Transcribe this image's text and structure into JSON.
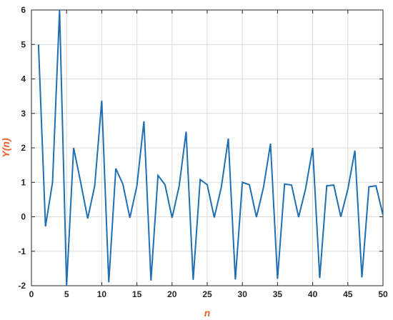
{
  "chart_data": {
    "type": "line",
    "xlabel": "n",
    "ylabel": "Y(n)",
    "xlim": [
      0,
      50
    ],
    "ylim": [
      -2,
      6
    ],
    "xticks": [
      0,
      5,
      10,
      15,
      20,
      25,
      30,
      35,
      40,
      45,
      50
    ],
    "yticks": [
      -2,
      -1,
      0,
      1,
      2,
      3,
      4,
      5,
      6
    ],
    "grid": true,
    "colors": {
      "line": "#1f6fb2",
      "label": "#e8622a",
      "grid": "#dcdcdc",
      "axis": "#262626"
    },
    "series": [
      {
        "x": [
          1,
          2,
          3,
          4,
          5,
          6,
          7,
          8,
          9,
          10,
          11,
          12,
          13,
          14,
          15,
          16,
          17,
          18,
          19,
          20,
          21,
          22,
          23,
          24,
          25,
          26,
          27,
          28,
          29,
          30,
          31,
          32,
          33,
          34,
          35,
          36,
          37,
          38,
          39,
          40,
          41,
          42,
          43,
          44,
          45,
          46,
          47,
          48,
          49,
          50
        ],
        "values": [
          5.0,
          -0.28,
          1.0,
          6.0,
          -2.0,
          2.0,
          1.0,
          -0.05,
          0.9,
          3.37,
          -1.9,
          1.4,
          0.95,
          -0.03,
          0.9,
          2.77,
          -1.85,
          1.2,
          0.93,
          -0.03,
          0.88,
          2.47,
          -1.83,
          1.08,
          0.93,
          -0.02,
          0.85,
          2.27,
          -1.82,
          1.0,
          0.93,
          -0.01,
          0.85,
          2.12,
          -1.8,
          0.95,
          0.92,
          -0.01,
          0.82,
          2.0,
          -1.78,
          0.9,
          0.92,
          0.0,
          0.8,
          1.92,
          -1.76,
          0.87,
          0.9,
          0.05
        ]
      }
    ]
  }
}
